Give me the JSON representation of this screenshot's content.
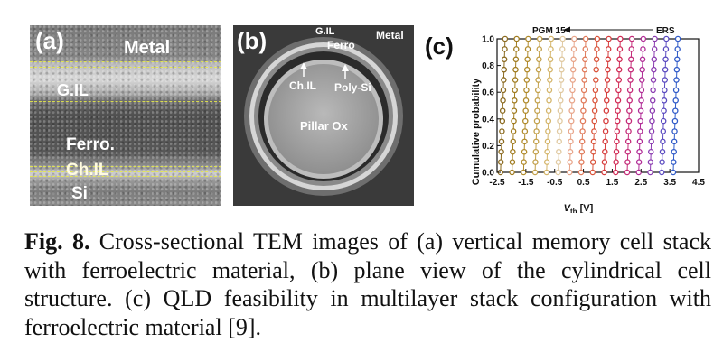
{
  "panel_a": {
    "letter": "(a)",
    "labels": {
      "metal": "Metal",
      "gil": "G.IL",
      "ferro": "Ferro.",
      "chil": "Ch.IL",
      "si": "Si"
    }
  },
  "panel_b": {
    "letter": "(b)",
    "labels": {
      "gil": "G.IL",
      "ferro": "Ferro",
      "metal": "Metal",
      "chil": "Ch.IL",
      "polysi": "Poly-Si",
      "pillar": "Pillar Ox"
    }
  },
  "panel_c": {
    "letter": "(c)",
    "arrow_left_label": "PGM 15",
    "arrow_right_label": "ERS",
    "chart_data": {
      "type": "scatter",
      "ylabel": "Cumulative probability",
      "xlabel_main": "V",
      "xlabel_sub": "th",
      "xlabel_unit": " [V]",
      "xlim": [
        -2.5,
        4.5
      ],
      "ylim": [
        0.0,
        1.0
      ],
      "x_ticks": [
        "-2.5",
        "-1.5",
        "-0.5",
        "0.5",
        "1.5",
        "2.5",
        "3.5",
        "4.5"
      ],
      "y_ticks": [
        "0.0",
        "0.2",
        "0.4",
        "0.6",
        "0.8",
        "1.0"
      ],
      "series": [
        {
          "color": "#8b6a1f",
          "x": -2.3
        },
        {
          "color": "#a07b1e",
          "x": -1.9
        },
        {
          "color": "#b08a2a",
          "x": -1.5
        },
        {
          "color": "#c2a04a",
          "x": -1.1
        },
        {
          "color": "#d4b56a",
          "x": -0.7
        },
        {
          "color": "#e0c9a0",
          "x": -0.3
        },
        {
          "color": "#e8a58a",
          "x": 0.1
        },
        {
          "color": "#e07a5a",
          "x": 0.5
        },
        {
          "color": "#d9533a",
          "x": 0.9
        },
        {
          "color": "#d63a3a",
          "x": 1.3
        },
        {
          "color": "#d12a55",
          "x": 1.7
        },
        {
          "color": "#c42a78",
          "x": 2.1
        },
        {
          "color": "#b02a95",
          "x": 2.5
        },
        {
          "color": "#8a3ab0",
          "x": 2.9
        },
        {
          "color": "#5a4ac0",
          "x": 3.3
        },
        {
          "color": "#2f5ac8",
          "x": 3.7
        }
      ]
    }
  },
  "caption": {
    "fig": "Fig. 8.",
    "text": " Cross-sectional TEM images of (a) vertical memory cell stack with ferroelectric material, (b) plane view of the cylindrical cell structure. (c) QLD feasibility in multilayer stack configuration with ferroelectric material [9]."
  }
}
